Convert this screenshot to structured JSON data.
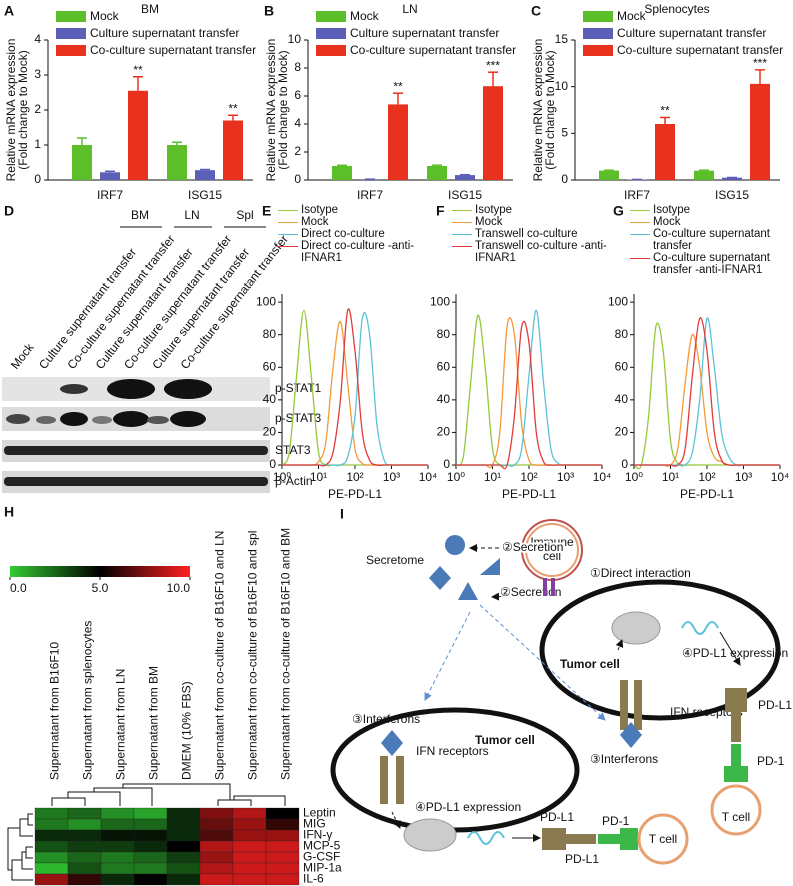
{
  "chart_data": [
    {
      "type": "bar",
      "panel": "A",
      "title": "BM",
      "ylabel": [
        "Relative mRNA expression",
        "(Fold change to Mock)"
      ],
      "categories": [
        "IRF7",
        "ISG15"
      ],
      "ylim": [
        0,
        4
      ],
      "yticks": [
        0,
        1,
        2,
        3,
        4
      ],
      "series": [
        {
          "name": "Mock",
          "color": "#5cbf2a",
          "values": [
            1.0,
            1.0
          ],
          "errors": [
            0.2,
            0.08
          ]
        },
        {
          "name": "Culture supernatant transfer",
          "color": "#5b5fb8",
          "values": [
            0.22,
            0.28
          ],
          "errors": [
            0.03,
            0.02
          ]
        },
        {
          "name": "Co-culture supernatant transfer",
          "color": "#e8321e",
          "values": [
            2.55,
            1.7
          ],
          "errors": [
            0.4,
            0.15
          ],
          "significance": [
            "**",
            "**"
          ]
        }
      ]
    },
    {
      "type": "bar",
      "panel": "B",
      "title": "LN",
      "ylabel": [
        "Relative mRNA expression",
        "(Fold change to Mock)"
      ],
      "categories": [
        "IRF7",
        "ISG15"
      ],
      "ylim": [
        0,
        10
      ],
      "yticks": [
        0,
        2,
        4,
        6,
        8,
        10
      ],
      "series": [
        {
          "name": "Mock",
          "color": "#5cbf2a",
          "values": [
            1.0,
            1.0
          ],
          "errors": [
            0.05,
            0.06
          ]
        },
        {
          "name": "Culture supernatant transfer",
          "color": "#5b5fb8",
          "values": [
            0.05,
            0.35
          ],
          "errors": [
            0.01,
            0.03
          ]
        },
        {
          "name": "Co-culture supernatant transfer",
          "color": "#e8321e",
          "values": [
            5.4,
            6.7
          ],
          "errors": [
            0.8,
            1.0
          ],
          "significance": [
            "**",
            "***"
          ]
        }
      ]
    },
    {
      "type": "bar",
      "panel": "C",
      "title": "Splenocytes",
      "ylabel": [
        "Relative mRNA expression",
        "(Fold change to Mock)"
      ],
      "categories": [
        "IRF7",
        "ISG15"
      ],
      "ylim": [
        0,
        15
      ],
      "yticks": [
        0,
        5,
        10,
        15
      ],
      "series": [
        {
          "name": "Mock",
          "color": "#5cbf2a",
          "values": [
            1.0,
            1.0
          ],
          "errors": [
            0.05,
            0.05
          ]
        },
        {
          "name": "Culture supernatant transfer",
          "color": "#5b5fb8",
          "values": [
            0.05,
            0.25
          ],
          "errors": [
            0.01,
            0.02
          ]
        },
        {
          "name": "Co-culture supernatant transfer",
          "color": "#e8321e",
          "values": [
            6.0,
            10.3
          ],
          "errors": [
            0.7,
            1.5
          ],
          "significance": [
            "**",
            "***"
          ]
        }
      ]
    },
    {
      "type": "line",
      "panel": "E",
      "xlabel": "PE-PD-L1",
      "log_x": true,
      "xlim": [
        1,
        10000
      ],
      "xticks": [
        {
          "value": 1,
          "label": "10⁰"
        },
        {
          "value": 10,
          "label": "10¹"
        },
        {
          "value": 100,
          "label": "10²"
        },
        {
          "value": 1000,
          "label": "10³"
        },
        {
          "value": 10000,
          "label": "10⁴"
        }
      ],
      "ylim": [
        0,
        105
      ],
      "yticks": [
        0,
        20,
        40,
        60,
        80,
        100
      ],
      "x": [
        1,
        1.585,
        2.512,
        3.981,
        6.31,
        10,
        15.85,
        25.12,
        39.81,
        63.1,
        100,
        158.5,
        251.2,
        398.1,
        631,
        1000,
        1585,
        2512,
        3981,
        6310,
        10000
      ],
      "series": [
        {
          "name": "Isotype",
          "color": "#96c83c",
          "values": [
            0,
            8,
            55,
            95,
            55,
            8,
            0,
            0,
            0,
            0,
            0,
            0,
            0,
            0,
            0,
            0,
            0,
            0,
            0,
            0,
            0
          ]
        },
        {
          "name": "Mock",
          "color": "#f39a3a",
          "values": [
            0,
            0,
            0,
            0,
            0,
            2,
            14,
            60,
            88,
            50,
            10,
            1,
            0,
            0,
            0,
            0,
            0,
            0,
            0,
            0,
            0
          ]
        },
        {
          "name": "Direct co-culture",
          "color": "#5cc2d8",
          "values": [
            0,
            0,
            0,
            0,
            0,
            0,
            0,
            0,
            0,
            5,
            30,
            90,
            80,
            25,
            3,
            0,
            0,
            0,
            0,
            0,
            0
          ]
        },
        {
          "name": "Direct co-culture -anti-IFNAR1",
          "color": "#df3b3b",
          "values": [
            0,
            0,
            0,
            0,
            0,
            0,
            0,
            8,
            40,
            95,
            70,
            20,
            3,
            0,
            0,
            0,
            0,
            0,
            0,
            0,
            0
          ]
        }
      ]
    },
    {
      "type": "line",
      "panel": "F",
      "xlabel": "PE-PD-L1",
      "log_x": true,
      "xlim": [
        1,
        10000
      ],
      "xticks": [
        {
          "value": 1,
          "label": "10⁰"
        },
        {
          "value": 10,
          "label": "10¹"
        },
        {
          "value": 100,
          "label": "10²"
        },
        {
          "value": 1000,
          "label": "10³"
        },
        {
          "value": 10000,
          "label": "10⁴"
        }
      ],
      "ylim": [
        0,
        105
      ],
      "yticks": [
        0,
        20,
        40,
        60,
        80,
        100
      ],
      "x": [
        1,
        1.585,
        2.512,
        3.981,
        6.31,
        10,
        15.85,
        25.12,
        39.81,
        63.1,
        100,
        158.5,
        251.2,
        398.1,
        631,
        1000,
        1585,
        2512,
        3981,
        6310,
        10000
      ],
      "series": [
        {
          "name": "Isotype",
          "color": "#96c83c",
          "values": [
            0,
            5,
            50,
            92,
            60,
            10,
            0,
            0,
            0,
            0,
            0,
            0,
            0,
            0,
            0,
            0,
            0,
            0,
            0,
            0,
            0
          ]
        },
        {
          "name": "Mock",
          "color": "#f39a3a",
          "values": [
            0,
            0,
            0,
            0,
            0,
            0,
            20,
            85,
            80,
            25,
            3,
            0,
            0,
            0,
            0,
            0,
            0,
            0,
            0,
            0,
            0
          ]
        },
        {
          "name": "Transwell co-culture",
          "color": "#5cc2d8",
          "values": [
            0,
            0,
            0,
            0,
            0,
            0,
            0,
            0,
            0,
            10,
            55,
            95,
            50,
            10,
            1,
            0,
            0,
            0,
            0,
            0,
            0
          ]
        },
        {
          "name": "Transwell co-culture -anti-IFNAR1",
          "color": "#df3b3b",
          "values": [
            0,
            0,
            0,
            0,
            0,
            0,
            0,
            0,
            30,
            85,
            75,
            20,
            2,
            0,
            0,
            0,
            0,
            0,
            0,
            0,
            0
          ]
        }
      ]
    },
    {
      "type": "line",
      "panel": "G",
      "xlabel": "PE-PD-L1",
      "log_x": true,
      "xlim": [
        1,
        10000
      ],
      "xticks": [
        {
          "value": 1,
          "label": "10⁰"
        },
        {
          "value": 10,
          "label": "10¹"
        },
        {
          "value": 100,
          "label": "10²"
        },
        {
          "value": 1000,
          "label": "10³"
        },
        {
          "value": 10000,
          "label": "10⁴"
        }
      ],
      "ylim": [
        0,
        105
      ],
      "yticks": [
        0,
        20,
        40,
        60,
        80,
        100
      ],
      "x": [
        1,
        1.585,
        2.512,
        3.981,
        6.31,
        10,
        15.85,
        25.12,
        39.81,
        63.1,
        100,
        158.5,
        251.2,
        398.1,
        631,
        1000,
        1585,
        2512,
        3981,
        6310,
        10000
      ],
      "series": [
        {
          "name": "Isotype",
          "color": "#96c83c",
          "values": [
            0,
            0,
            30,
            85,
            70,
            15,
            1,
            0,
            0,
            0,
            0,
            0,
            0,
            0,
            0,
            0,
            0,
            0,
            0,
            0,
            0
          ]
        },
        {
          "name": "Mock",
          "color": "#f39a3a",
          "values": [
            0,
            0,
            0,
            0,
            0,
            0,
            10,
            50,
            80,
            60,
            20,
            5,
            2,
            0,
            0,
            0,
            0,
            0,
            0,
            0,
            0
          ]
        },
        {
          "name": "Co-culture supernatant transfer",
          "color": "#5cc2d8",
          "values": [
            0,
            0,
            0,
            0,
            0,
            0,
            0,
            0,
            8,
            40,
            90,
            60,
            20,
            5,
            0,
            0,
            0,
            0,
            0,
            0,
            0
          ]
        },
        {
          "name": "Co-culture supernatant transfer -anti-IFNAR1",
          "color": "#df3b3b",
          "values": [
            0,
            0,
            0,
            0,
            0,
            0,
            0,
            10,
            55,
            90,
            70,
            20,
            3,
            0,
            0,
            0,
            0,
            0,
            0,
            0,
            0
          ]
        }
      ]
    },
    {
      "type": "heatmap",
      "panel": "H",
      "columns": [
        "Supernatant from B16F10",
        "Supernatant from splenocytes",
        "Supernatant from LN",
        "Supernatant from BM",
        "DMEM (10% FBS)",
        "Supernatant from co-culture of B16F10 and LN",
        "Supernatant from co-culture of B16F10 and spl",
        "Supernatant from co-culture of B16F10 and BM"
      ],
      "rows": [
        "Leptin",
        "MIG",
        "IFN-γ",
        "MCP-5",
        "G-CSF",
        "MIP-1a",
        "IL-6"
      ],
      "values": [
        [
          2,
          2.5,
          1.5,
          1,
          4,
          7.5,
          8.5,
          5
        ],
        [
          2,
          1.5,
          2.5,
          2.5,
          4,
          7,
          8,
          6
        ],
        [
          4,
          4,
          4.5,
          4.5,
          4,
          6.5,
          8,
          8
        ],
        [
          3,
          3.5,
          3.5,
          4,
          5,
          8.5,
          9,
          9
        ],
        [
          1.5,
          2.5,
          2,
          2.5,
          3.5,
          8,
          9,
          9
        ],
        [
          0.5,
          3,
          2,
          2,
          3,
          8.5,
          9,
          9
        ],
        [
          8,
          6,
          4,
          5,
          4,
          9,
          9,
          9
        ]
      ],
      "colormap": [
        "#33cc33",
        "#000000",
        "#ff2020"
      ],
      "clim": [
        0,
        10
      ],
      "colorbar_ticks": [
        {
          "value": 0,
          "label": "0.0"
        },
        {
          "value": 5,
          "label": "5.0"
        },
        {
          "value": 10,
          "label": "10.0"
        }
      ]
    }
  ],
  "blot": {
    "panel": "D",
    "groups": [
      "BM",
      "LN",
      "Spl"
    ],
    "lanes": [
      "Mock",
      "Culture supernatant transfer",
      "Co-culture supernatant transfer",
      "Culture supernatant transfer",
      "Co-culture supernatant transfer",
      "Culture supernatant transfer",
      "Co-culture supernatant transfer"
    ],
    "bands": [
      "p-STAT1",
      "p-STAT3",
      "STAT3",
      "β-Actin"
    ]
  },
  "diagram": {
    "panel": "I",
    "secretome": "Secretome",
    "secretion": [
      "②Secretion",
      "②Secretion"
    ],
    "immune_cell": [
      "Immune",
      "cell"
    ],
    "direct_interaction": "①Direct interaction",
    "tumor_cell": [
      "Tumor cell",
      "Tumor cell"
    ],
    "pdl1_expression": [
      "④PD-L1 expression",
      "④PD-L1 expression"
    ],
    "interferons": [
      "③Interferons",
      "③Interferons"
    ],
    "ifn_receptors": [
      "IFN receptors",
      "IFN receptors"
    ],
    "pd_l1": [
      "PD-L1",
      "PD-L1",
      "PD-L1"
    ],
    "pd_1": [
      "PD-1",
      "PD-1"
    ],
    "t_cell": [
      "T cell",
      "T cell"
    ]
  }
}
